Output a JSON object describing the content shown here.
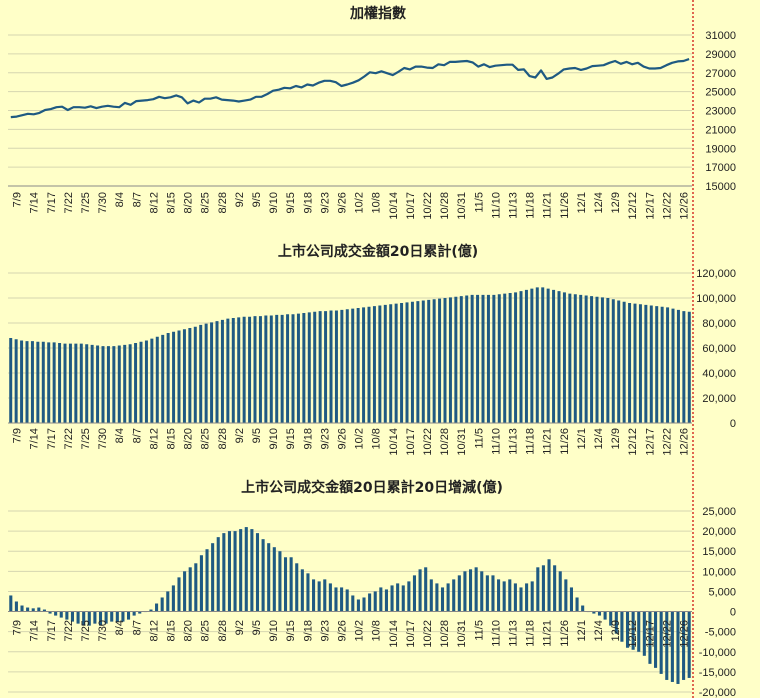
{
  "colors": {
    "background": "#FFFFC8",
    "series": "#1F5A82",
    "divider": "#CC0000"
  },
  "chart_data": [
    {
      "type": "line",
      "title": "加權指數",
      "ylim": [
        15000,
        31000
      ],
      "yticks": [
        "31000",
        "29000",
        "27000",
        "25000",
        "23000",
        "21000",
        "19000",
        "17000",
        "15000"
      ],
      "xticks": [
        "7/9",
        "7/14",
        "7/17",
        "7/22",
        "7/25",
        "7/30",
        "8/4",
        "8/7",
        "8/12",
        "8/15",
        "8/20",
        "8/25",
        "8/28",
        "9/2",
        "9/5",
        "9/10",
        "9/15",
        "9/18",
        "9/23",
        "9/26",
        "10/2",
        "10/8",
        "10/14",
        "10/17",
        "10/22",
        "10/28",
        "10/31",
        "11/5",
        "11/10",
        "11/13",
        "11/18",
        "11/21",
        "11/26",
        "12/1",
        "12/4",
        "12/9",
        "12/12",
        "12/17",
        "12/22",
        "12/26"
      ],
      "grid": true,
      "series": [
        {
          "values": [
            22300,
            22350,
            22500,
            22650,
            22600,
            22750,
            23050,
            23150,
            23350,
            23400,
            23050,
            23350,
            23350,
            23300,
            23450,
            23250,
            23400,
            23500,
            23400,
            23350,
            23800,
            23600,
            24000,
            24050,
            24100,
            24200,
            24450,
            24300,
            24400,
            24600,
            24400,
            23750,
            24050,
            23850,
            24250,
            24250,
            24400,
            24150,
            24100,
            24050,
            23950,
            24050,
            24150,
            24450,
            24450,
            24750,
            25100,
            25200,
            25400,
            25350,
            25600,
            25450,
            25750,
            25650,
            25950,
            26150,
            26150,
            26000,
            25600,
            25750,
            25950,
            26200,
            26600,
            27050,
            26950,
            27150,
            26950,
            26750,
            27100,
            27500,
            27350,
            27650,
            27650,
            27550,
            27500,
            27900,
            27800,
            28150,
            28150,
            28200,
            28250,
            28100,
            27650,
            27900,
            27600,
            27750,
            27800,
            27850,
            27850,
            27300,
            27350,
            26650,
            26500,
            27250,
            26350,
            26500,
            26900,
            27350,
            27450,
            27500,
            27300,
            27450,
            27700,
            27750,
            27800,
            28050,
            28250,
            27950,
            28150,
            27900,
            28050,
            27650,
            27450,
            27450,
            27500,
            27800,
            28050,
            28200,
            28250,
            28450
          ]
        }
      ]
    },
    {
      "type": "bar",
      "title": "上市公司成交金額20日累計(億)",
      "ylim": [
        0,
        120000
      ],
      "yticks": [
        "120,000",
        "100,000",
        "80,000",
        "60,000",
        "40,000",
        "20,000",
        "0"
      ],
      "xticks": [
        "7/9",
        "7/14",
        "7/17",
        "7/22",
        "7/25",
        "7/30",
        "8/4",
        "8/7",
        "8/12",
        "8/15",
        "8/20",
        "8/25",
        "8/28",
        "9/2",
        "9/5",
        "9/10",
        "9/15",
        "9/18",
        "9/23",
        "9/26",
        "10/2",
        "10/8",
        "10/14",
        "10/17",
        "10/22",
        "10/28",
        "10/31",
        "11/5",
        "11/10",
        "11/13",
        "11/18",
        "11/21",
        "11/26",
        "12/1",
        "12/4",
        "12/9",
        "12/12",
        "12/17",
        "12/22",
        "12/26"
      ],
      "grid": true,
      "series": [
        {
          "values": [
            68000,
            67000,
            66000,
            65500,
            65500,
            65000,
            65000,
            64500,
            64500,
            64000,
            63500,
            63500,
            63500,
            63500,
            63000,
            62500,
            62000,
            61500,
            61500,
            61500,
            62000,
            62500,
            63000,
            64000,
            65000,
            66000,
            67500,
            69000,
            70500,
            72000,
            73000,
            74000,
            75000,
            76000,
            77000,
            78500,
            79500,
            80500,
            81500,
            82500,
            83500,
            84000,
            84500,
            85000,
            85000,
            85500,
            85500,
            86000,
            86000,
            86500,
            86500,
            87000,
            87000,
            87500,
            88000,
            88500,
            89000,
            89500,
            89500,
            90000,
            90000,
            90500,
            91000,
            91500,
            92000,
            92500,
            93000,
            93500,
            94000,
            94500,
            95000,
            95500,
            96000,
            96500,
            97000,
            97500,
            98000,
            98500,
            99000,
            99500,
            100000,
            100500,
            101000,
            101500,
            102000,
            102500,
            102500,
            102500,
            102500,
            102500,
            103000,
            103500,
            104000,
            104500,
            105500,
            106500,
            107500,
            108500,
            108500,
            107500,
            106500,
            105500,
            104500,
            103500,
            103000,
            102500,
            102000,
            101500,
            101000,
            100500,
            100000,
            99000,
            98000,
            97000,
            96000,
            95500,
            95000,
            94500,
            94000,
            93500,
            93000,
            92500,
            91500,
            90500,
            89500,
            89000
          ]
        }
      ]
    },
    {
      "type": "bar",
      "title": "上市公司成交金額20日累計20日增減(億)",
      "ylim": [
        -20000,
        25000
      ],
      "yticks": [
        "25,000",
        "20,000",
        "15,000",
        "10,000",
        "5,000",
        "0",
        "-5,000",
        "-10,000",
        "-15,000",
        "-20,000"
      ],
      "xticks": [
        "7/9",
        "7/14",
        "7/17",
        "7/22",
        "7/25",
        "7/30",
        "8/4",
        "8/7",
        "8/12",
        "8/15",
        "8/20",
        "8/25",
        "8/28",
        "9/2",
        "9/5",
        "9/10",
        "9/15",
        "9/18",
        "9/23",
        "9/26",
        "10/2",
        "10/8",
        "10/14",
        "10/17",
        "10/22",
        "10/28",
        "10/31",
        "11/5",
        "11/10",
        "11/13",
        "11/18",
        "11/21",
        "11/26",
        "12/1",
        "12/4",
        "12/9",
        "12/12",
        "12/17",
        "12/22",
        "12/26"
      ],
      "grid": true,
      "series": [
        {
          "values": [
            4000,
            2500,
            1500,
            1000,
            800,
            1000,
            500,
            -500,
            -1000,
            -1500,
            -2000,
            -2500,
            -3000,
            -3500,
            -3500,
            -3000,
            -3500,
            -3000,
            -2500,
            -2500,
            -2500,
            -2000,
            -1000,
            -500,
            0,
            500,
            2000,
            3500,
            5000,
            6500,
            8500,
            10000,
            11000,
            12000,
            14000,
            15500,
            17000,
            18500,
            19500,
            20000,
            20000,
            20500,
            21000,
            20500,
            19500,
            18000,
            17000,
            16000,
            15000,
            13500,
            13500,
            12000,
            10500,
            9500,
            8000,
            7500,
            8000,
            7000,
            6000,
            6000,
            5500,
            4000,
            3000,
            3500,
            4500,
            5000,
            6000,
            5500,
            6500,
            7000,
            6500,
            7500,
            9000,
            10500,
            11000,
            8000,
            7000,
            6000,
            7000,
            8000,
            9000,
            10000,
            10500,
            11000,
            10000,
            9000,
            9000,
            8000,
            7500,
            8000,
            7000,
            6000,
            7000,
            7500,
            11000,
            11500,
            13000,
            11500,
            10000,
            8000,
            6000,
            3500,
            1500,
            0,
            -500,
            -1000,
            -2000,
            -3500,
            -5500,
            -7500,
            -9000,
            -9500,
            -10000,
            -11000,
            -13000,
            -14000,
            -15500,
            -17000,
            -17500,
            -18000,
            -17000,
            -16500
          ]
        }
      ]
    }
  ]
}
